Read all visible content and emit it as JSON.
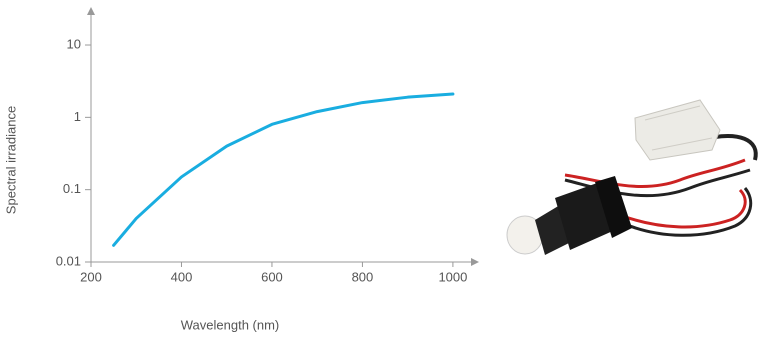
{
  "chart_data": {
    "type": "line",
    "x_label": "Wavelength (nm)",
    "y_label": "Spectral irradiance",
    "x": [
      250,
      300,
      400,
      500,
      600,
      700,
      800,
      900,
      1000
    ],
    "series": [
      {
        "color": "#19ade0",
        "values": [
          0.017,
          0.04,
          0.15,
          0.4,
          0.8,
          1.2,
          1.6,
          1.9,
          2.1
        ]
      }
    ],
    "xlim": [
      200,
      1040
    ],
    "xticks": [
      200,
      400,
      600,
      800,
      1000
    ],
    "ylim": [
      0.01,
      26
    ],
    "yticks": [
      0.01,
      0.1,
      1,
      10
    ],
    "log_y": true
  }
}
